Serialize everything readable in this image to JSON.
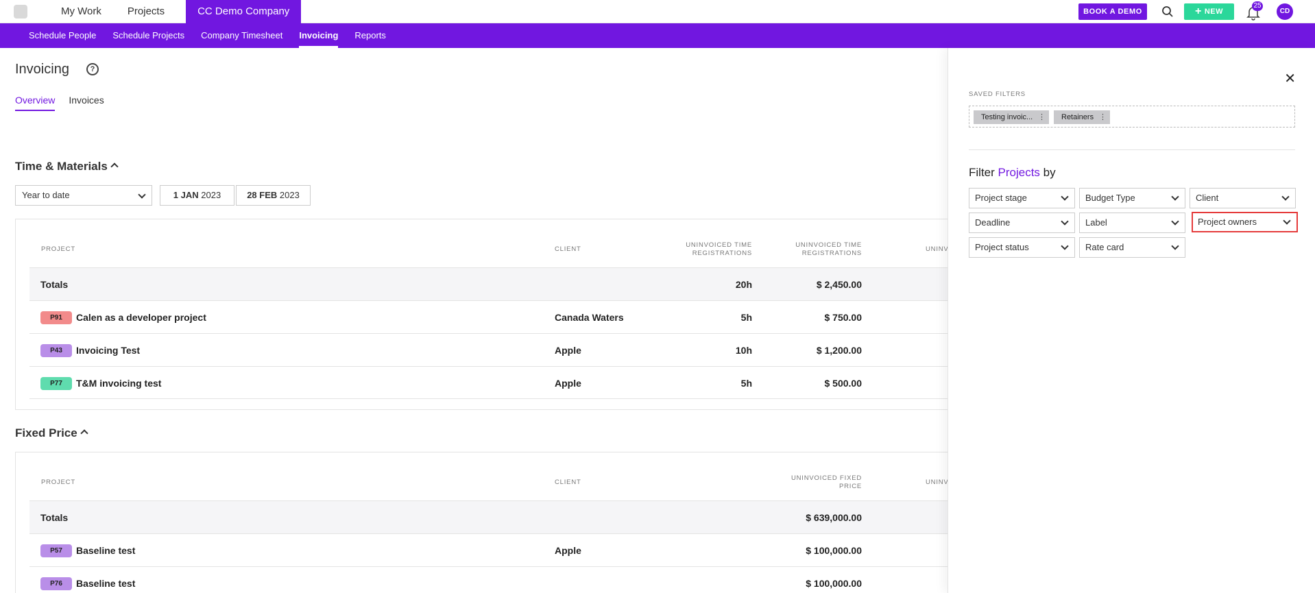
{
  "topnav": {
    "items": [
      "My Work",
      "Projects"
    ],
    "company": "CC Demo Company",
    "book_demo": "BOOK A DEMO",
    "new_label": "NEW",
    "notifications_count": "25",
    "avatar": "CD"
  },
  "subnav": {
    "items": [
      "Schedule People",
      "Schedule Projects",
      "Company Timesheet",
      "Invoicing",
      "Reports"
    ],
    "active": "Invoicing"
  },
  "page": {
    "title": "Invoicing",
    "tabs": [
      "Overview",
      "Invoices"
    ],
    "active_tab": "Overview"
  },
  "tm": {
    "title": "Time & Materials",
    "period": "Year to date",
    "start_date_bold": "1 JAN",
    "start_date_year": "2023",
    "end_date_bold": "28 FEB",
    "end_date_year": "2023",
    "headers": {
      "project": "PROJECT",
      "client": "CLIENT",
      "time_line1": "UNINVOICED TIME",
      "time_line2": "REGISTRATIONS",
      "amount_line1": "UNINVOICED TIME",
      "amount_line2": "REGISTRATIONS",
      "cut": "UNINV"
    },
    "totals": {
      "label": "Totals",
      "hours": "20h",
      "amount": "$ 2,450.00"
    },
    "rows": [
      {
        "id": "P91",
        "name": "Calen as a developer project",
        "client": "Canada Waters",
        "hours": "5h",
        "amount": "$ 750.00",
        "color": "#f28b8b"
      },
      {
        "id": "P43",
        "name": "Invoicing Test",
        "client": "Apple",
        "hours": "10h",
        "amount": "$ 1,200.00",
        "color": "#b98ee8"
      },
      {
        "id": "P77",
        "name": "T&M invoicing test",
        "client": "Apple",
        "hours": "5h",
        "amount": "$ 500.00",
        "color": "#5fdcae"
      }
    ]
  },
  "fp": {
    "title": "Fixed Price",
    "headers": {
      "project": "PROJECT",
      "client": "CLIENT",
      "amount_line1": "UNINVOICED FIXED",
      "amount_line2": "PRICE",
      "cut": "UNINV"
    },
    "totals": {
      "label": "Totals",
      "amount": "$ 639,000.00"
    },
    "rows": [
      {
        "id": "P57",
        "name": "Baseline test",
        "client": "Apple",
        "amount": "$ 100,000.00",
        "color": "#b98ee8"
      },
      {
        "id": "P76",
        "name": "Baseline test",
        "client": "",
        "amount": "$ 100,000.00",
        "color": "#b98ee8"
      }
    ]
  },
  "filters": {
    "saved_label": "SAVED FILTERS",
    "saved_chips": [
      "Testing invoic...",
      "Retainers"
    ],
    "title_prefix": "Filter",
    "title_accent": "Projects",
    "title_suffix": "by",
    "options": [
      "Project stage",
      "Budget Type",
      "Client",
      "Deadline",
      "Label",
      "Project owners",
      "Project status",
      "Rate card"
    ],
    "highlighted": "Project owners"
  },
  "colors": {
    "brand": "#7117e0",
    "new_button": "#2bd79a",
    "highlight": "#e53b3b"
  }
}
